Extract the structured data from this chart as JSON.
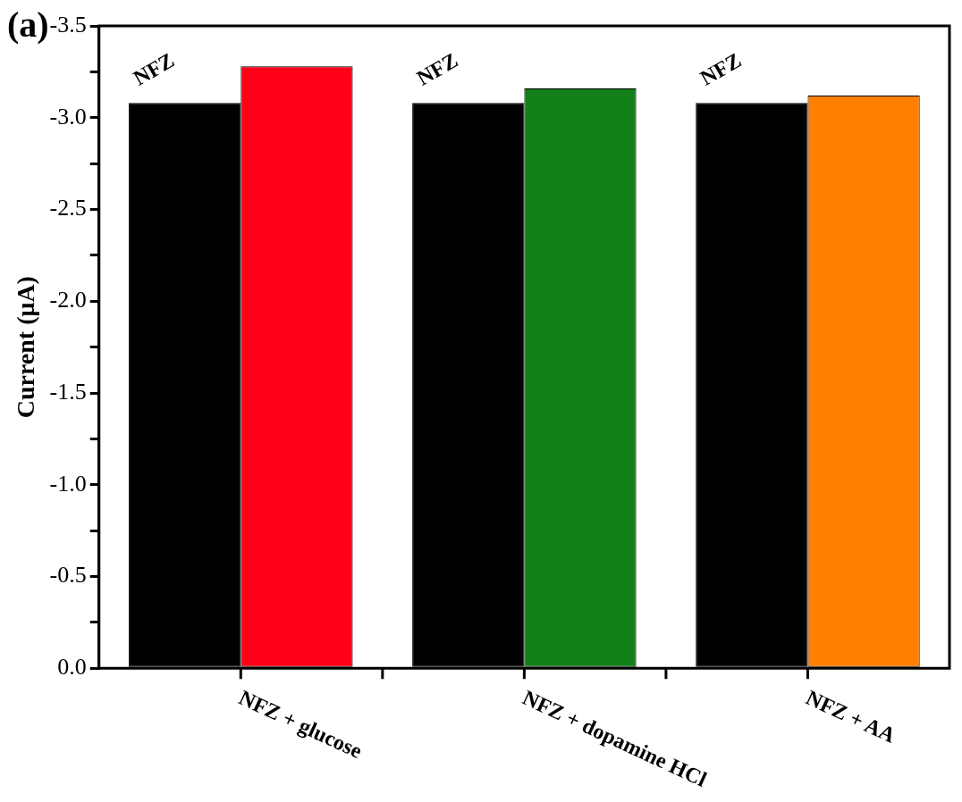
{
  "chart_data": {
    "type": "bar",
    "annotations": [
      "(a)"
    ],
    "ylabel": "Current (μA)",
    "categories": [
      "NFZ + glucose",
      "NFZ + dopamine HCl",
      "NFZ + AA"
    ],
    "series": [
      {
        "name": "NFZ",
        "color": "#000000",
        "values": [
          -3.08,
          -3.08,
          -3.08
        ]
      },
      {
        "colors": [
          "#ff0019",
          "#128019",
          "#ff8000"
        ],
        "values": [
          -3.28,
          -3.16,
          -3.12
        ]
      }
    ],
    "ylim": [
      0,
      -3.5
    ],
    "yticks": [
      {
        "value": 0,
        "label": "0.0"
      },
      {
        "value": -0.25,
        "label": null
      },
      {
        "value": -0.5,
        "label": "-0.5"
      },
      {
        "value": -0.75,
        "label": null
      },
      {
        "value": -1,
        "label": "-1.0"
      },
      {
        "value": -1.25,
        "label": null
      },
      {
        "value": -1.5,
        "label": "-1.5"
      },
      {
        "value": -1.75,
        "label": null
      },
      {
        "value": -2,
        "label": "-2.0"
      },
      {
        "value": -2.25,
        "label": null
      },
      {
        "value": -2.5,
        "label": "-2.5"
      },
      {
        "value": -2.75,
        "label": null
      },
      {
        "value": -3,
        "label": "-3.0"
      },
      {
        "value": -3.25,
        "label": null
      },
      {
        "value": -3.5,
        "label": "-3.5"
      }
    ],
    "grid": false,
    "legend": false
  }
}
